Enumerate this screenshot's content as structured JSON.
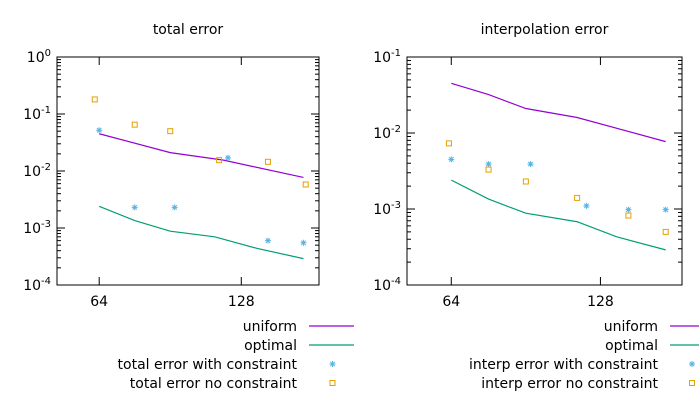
{
  "chart_data": [
    {
      "type": "line",
      "title": "total error",
      "xlabel": "",
      "ylabel": "",
      "yscale": "log",
      "ylim": [
        0.0001,
        1
      ],
      "xlim": [
        45,
        163
      ],
      "xticks": [
        {
          "value": 64,
          "label": "64"
        },
        {
          "value": 128,
          "label": "128"
        }
      ],
      "yticks": [
        {
          "value": 1,
          "label": "10",
          "exp": "0"
        },
        {
          "value": 0.1,
          "label": "10",
          "exp": "-1"
        },
        {
          "value": 0.01,
          "label": "10",
          "exp": "-2"
        },
        {
          "value": 0.001,
          "label": "10",
          "exp": "-3"
        },
        {
          "value": 0.0001,
          "label": "10",
          "exp": "-4"
        }
      ],
      "grid": false,
      "legend_position": "bottom",
      "series": [
        {
          "name": "uniform",
          "kind": "line",
          "color": "#9400d3",
          "x": [
            64,
            96,
            120,
            156
          ],
          "y": [
            0.045,
            0.021,
            0.0155,
            0.0077
          ]
        },
        {
          "name": "optimal",
          "kind": "line",
          "color": "#009e73",
          "x": [
            64,
            80,
            96,
            116,
            135,
            156
          ],
          "y": [
            0.0024,
            0.00135,
            0.00088,
            0.0007,
            0.00044,
            0.00029
          ]
        },
        {
          "name": "total error with constraint",
          "kind": "points",
          "marker": "star",
          "color": "#56b4e9",
          "x": [
            64,
            80,
            98,
            122,
            140,
            156
          ],
          "y": [
            0.052,
            0.0023,
            0.0023,
            0.017,
            0.0006,
            0.00055
          ]
        },
        {
          "name": "total error no constraint",
          "kind": "points",
          "marker": "square",
          "color": "#e69f00",
          "x": [
            62,
            80,
            96,
            118,
            140,
            157
          ],
          "y": [
            0.18,
            0.065,
            0.05,
            0.0155,
            0.0145,
            0.0058
          ]
        }
      ]
    },
    {
      "type": "line",
      "title": "interpolation error",
      "xlabel": "",
      "ylabel": "",
      "yscale": "log",
      "ylim": [
        0.0001,
        0.1
      ],
      "xlim": [
        45,
        163
      ],
      "xticks": [
        {
          "value": 64,
          "label": "64"
        },
        {
          "value": 128,
          "label": "128"
        }
      ],
      "yticks": [
        {
          "value": 0.1,
          "label": "10",
          "exp": "-1"
        },
        {
          "value": 0.01,
          "label": "10",
          "exp": "-2"
        },
        {
          "value": 0.001,
          "label": "10",
          "exp": "-3"
        },
        {
          "value": 0.0001,
          "label": "10",
          "exp": "-4"
        }
      ],
      "grid": false,
      "legend_position": "bottom",
      "series": [
        {
          "name": "uniform",
          "kind": "line",
          "color": "#9400d3",
          "x": [
            64,
            80,
            96,
            118,
            156
          ],
          "y": [
            0.045,
            0.032,
            0.021,
            0.016,
            0.0077
          ]
        },
        {
          "name": "optimal",
          "kind": "line",
          "color": "#009e73",
          "x": [
            64,
            80,
            96,
            118,
            135,
            156
          ],
          "y": [
            0.0024,
            0.00135,
            0.00088,
            0.00068,
            0.00043,
            0.00029
          ]
        },
        {
          "name": "interp error with constraint",
          "kind": "points",
          "marker": "star",
          "color": "#56b4e9",
          "x": [
            64,
            80,
            98,
            122,
            140,
            156
          ],
          "y": [
            0.0045,
            0.0039,
            0.0039,
            0.0011,
            0.00098,
            0.00098
          ]
        },
        {
          "name": "interp error no constraint",
          "kind": "points",
          "marker": "square",
          "color": "#e69f00",
          "x": [
            63,
            80,
            96,
            118,
            140,
            156
          ],
          "y": [
            0.0073,
            0.0033,
            0.0023,
            0.0014,
            0.00082,
            0.0005
          ]
        }
      ]
    }
  ]
}
